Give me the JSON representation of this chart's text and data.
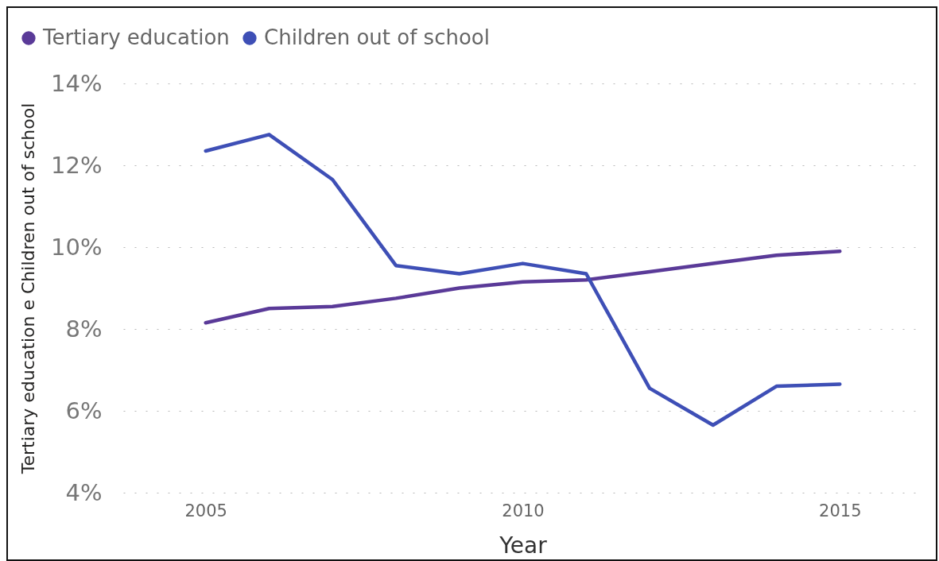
{
  "chart_data": {
    "type": "line",
    "xlabel": "Year",
    "ylabel": "Tertiary education e Children out of school",
    "x": [
      2005,
      2006,
      2007,
      2008,
      2009,
      2010,
      2011,
      2012,
      2013,
      2014,
      2015
    ],
    "series": [
      {
        "name": "Tertiary education",
        "color": "#5a3a98",
        "values": [
          8.15,
          8.5,
          8.55,
          8.75,
          9.0,
          9.15,
          9.2,
          9.4,
          9.6,
          9.8,
          9.9
        ]
      },
      {
        "name": "Children out of school",
        "color": "#3e4fb6",
        "values": [
          12.35,
          12.75,
          11.65,
          9.55,
          9.35,
          9.6,
          9.35,
          6.55,
          5.65,
          6.6,
          6.65
        ]
      }
    ],
    "xlim": [
      2003.7,
      2016.3
    ],
    "xticks": [
      2005,
      2010,
      2015
    ],
    "ylim": [
      4,
      14
    ],
    "yticks": [
      {
        "value": 4,
        "label": "4%"
      },
      {
        "value": 6,
        "label": "6%"
      },
      {
        "value": 8,
        "label": "8%"
      },
      {
        "value": 10,
        "label": "10%"
      },
      {
        "value": 12,
        "label": "12%"
      },
      {
        "value": 14,
        "label": "14%"
      }
    ],
    "grid": "y",
    "legend": "top left",
    "line_style": "solid"
  }
}
